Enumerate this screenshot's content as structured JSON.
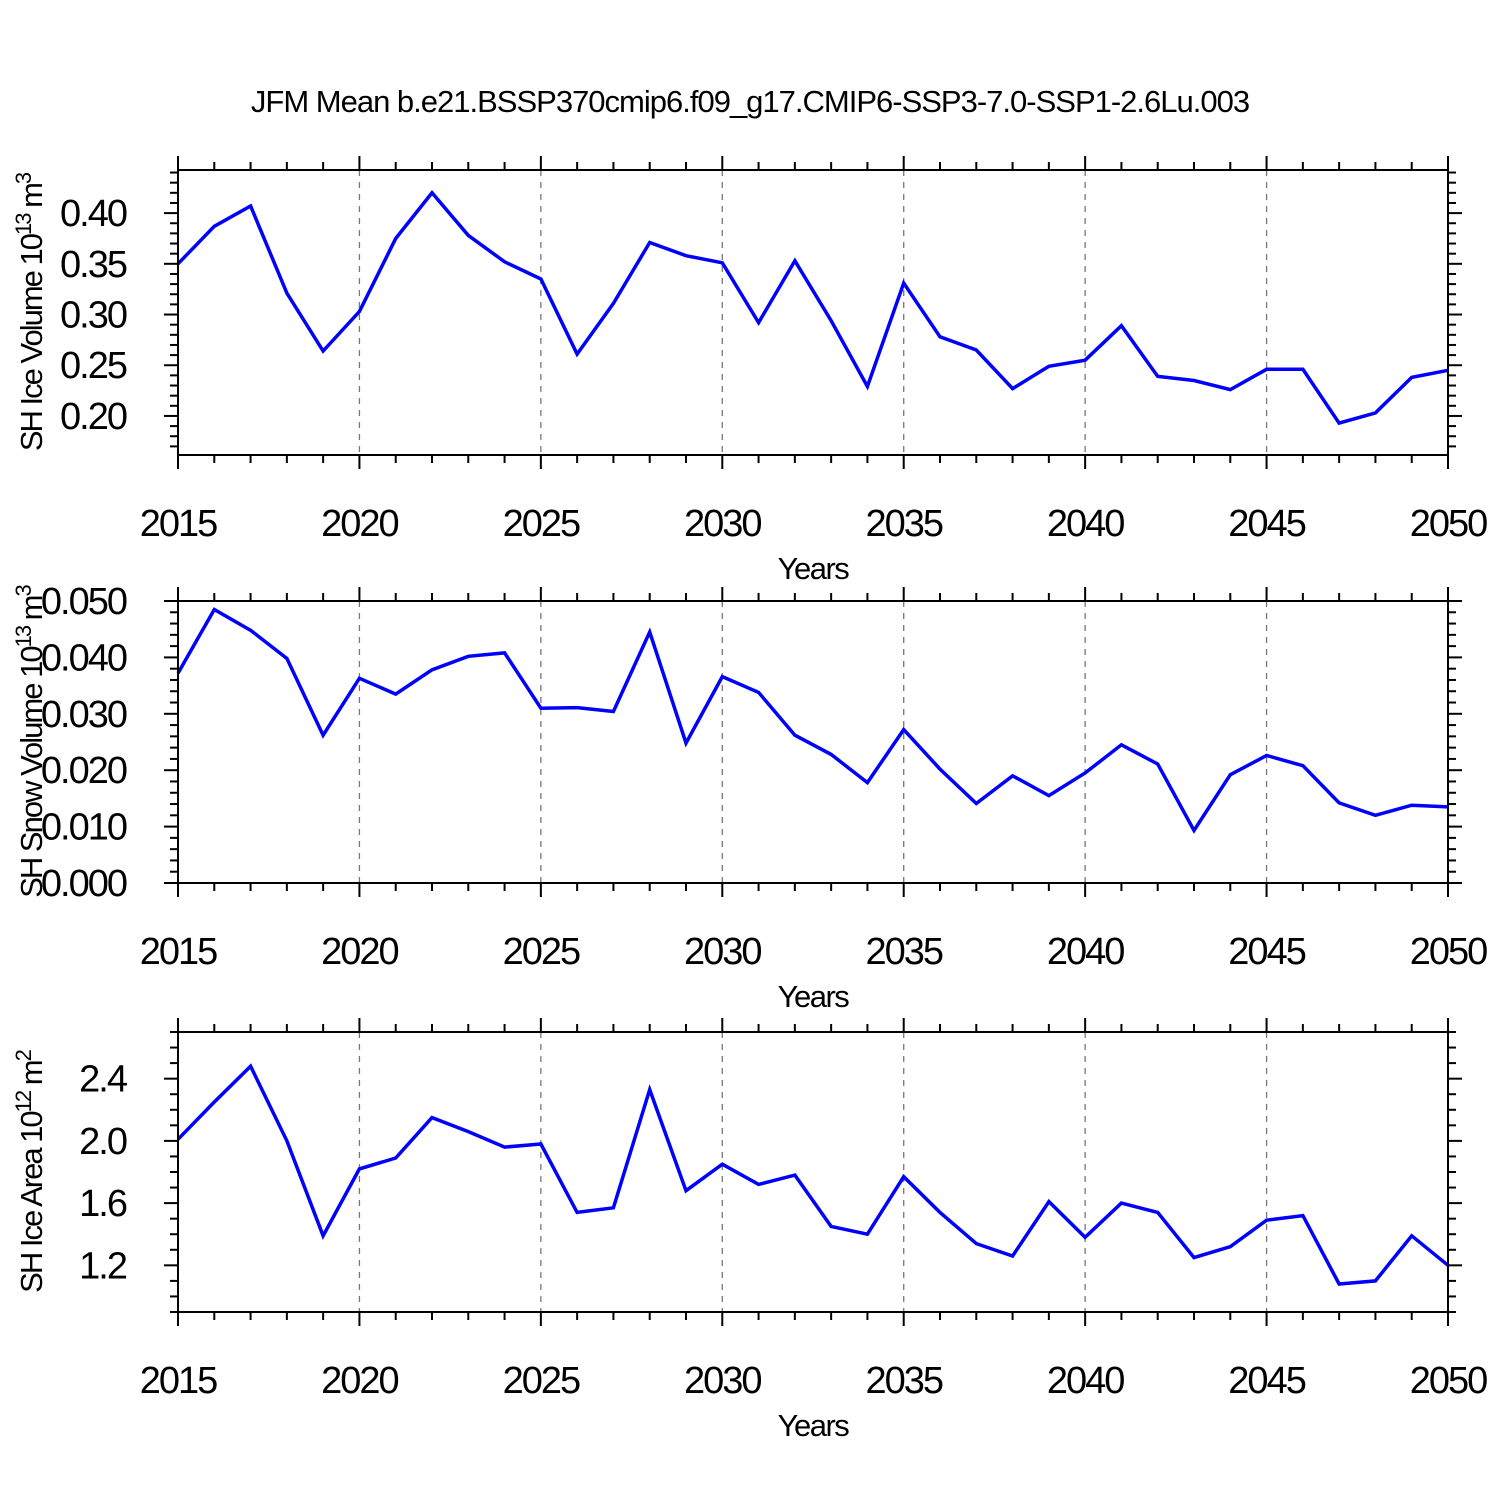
{
  "title": "JFM Mean b.e21.BSSP370cmip6.f09_g17.CMIP6-SSP3-7.0-SSP1-2.6Lu.003",
  "line_color": "#0000ff",
  "grid_color": "#777777",
  "axis_color": "#000000",
  "chart_data": [
    {
      "type": "line",
      "title": "",
      "ylabel": "SH Ice Volume 10^{13} m^{3}",
      "xlabel": "Years",
      "x": [
        2015,
        2016,
        2017,
        2018,
        2019,
        2020,
        2021,
        2022,
        2023,
        2024,
        2025,
        2026,
        2027,
        2028,
        2029,
        2030,
        2031,
        2032,
        2033,
        2034,
        2035,
        2036,
        2037,
        2038,
        2039,
        2040,
        2041,
        2042,
        2043,
        2044,
        2045,
        2046,
        2047,
        2048,
        2049,
        2050
      ],
      "values": [
        0.35,
        0.387,
        0.407,
        0.321,
        0.264,
        0.303,
        0.375,
        0.42,
        0.378,
        0.352,
        0.335,
        0.261,
        0.311,
        0.371,
        0.358,
        0.351,
        0.292,
        0.353,
        0.294,
        0.229,
        0.331,
        0.278,
        0.265,
        0.227,
        0.249,
        0.255,
        0.289,
        0.239,
        0.235,
        0.226,
        0.246,
        0.246,
        0.193,
        0.203,
        0.238,
        0.245
      ],
      "xlim": [
        2015,
        2050
      ],
      "ylim": [
        0.1615,
        0.4425
      ],
      "xticks": [
        2015,
        2020,
        2025,
        2030,
        2035,
        2040,
        2045,
        2050
      ],
      "x_minor_step": 1,
      "ytick_values": [
        0.2,
        0.25,
        0.3,
        0.35,
        0.4
      ],
      "ytick_labels": [
        "0.20",
        "0.25",
        "0.30",
        "0.35",
        "0.40"
      ],
      "y_minor_step": 0.01,
      "grid_x": [
        2020,
        2025,
        2030,
        2035,
        2040,
        2045
      ],
      "grid_on": true,
      "legend": "none"
    },
    {
      "type": "line",
      "title": "",
      "ylabel": "SH Snow Volume 10^{13} m^{3}",
      "xlabel": "Years",
      "x": [
        2015,
        2016,
        2017,
        2018,
        2019,
        2020,
        2021,
        2022,
        2023,
        2024,
        2025,
        2026,
        2027,
        2028,
        2029,
        2030,
        2031,
        2032,
        2033,
        2034,
        2035,
        2036,
        2037,
        2038,
        2039,
        2040,
        2041,
        2042,
        2043,
        2044,
        2045,
        2046,
        2047,
        2048,
        2049,
        2050
      ],
      "values": [
        0.0372,
        0.0485,
        0.0448,
        0.0398,
        0.0262,
        0.0363,
        0.0335,
        0.0378,
        0.0402,
        0.0408,
        0.031,
        0.0311,
        0.0304,
        0.0445,
        0.0248,
        0.0366,
        0.0338,
        0.0262,
        0.0228,
        0.0178,
        0.0272,
        0.0202,
        0.0141,
        0.019,
        0.0155,
        0.0195,
        0.0245,
        0.0211,
        0.0093,
        0.0192,
        0.0226,
        0.0208,
        0.0142,
        0.012,
        0.0138,
        0.0135
      ],
      "xlim": [
        2015,
        2050
      ],
      "ylim": [
        0.0,
        0.05
      ],
      "xticks": [
        2015,
        2020,
        2025,
        2030,
        2035,
        2040,
        2045,
        2050
      ],
      "x_minor_step": 1,
      "ytick_values": [
        0.0,
        0.01,
        0.02,
        0.03,
        0.04,
        0.05
      ],
      "ytick_labels": [
        "0.000",
        "0.010",
        "0.020",
        "0.030",
        "0.040",
        "0.050"
      ],
      "y_minor_step": 0.002,
      "grid_x": [
        2020,
        2025,
        2030,
        2035,
        2040,
        2045
      ],
      "grid_on": true,
      "legend": "none"
    },
    {
      "type": "line",
      "title": "",
      "ylabel": "SH Ice Area 10^{12} m^{2}",
      "xlabel": "Years",
      "x": [
        2015,
        2016,
        2017,
        2018,
        2019,
        2020,
        2021,
        2022,
        2023,
        2024,
        2025,
        2026,
        2027,
        2028,
        2029,
        2030,
        2031,
        2032,
        2033,
        2034,
        2035,
        2036,
        2037,
        2038,
        2039,
        2040,
        2041,
        2042,
        2043,
        2044,
        2045,
        2046,
        2047,
        2048,
        2049,
        2050
      ],
      "values": [
        2.01,
        2.25,
        2.48,
        2.0,
        1.39,
        1.82,
        1.89,
        2.15,
        2.06,
        1.96,
        1.98,
        1.54,
        1.57,
        2.33,
        1.68,
        1.85,
        1.72,
        1.78,
        1.45,
        1.4,
        1.77,
        1.54,
        1.34,
        1.26,
        1.61,
        1.38,
        1.6,
        1.54,
        1.25,
        1.32,
        1.49,
        1.52,
        1.08,
        1.1,
        1.39,
        1.2
      ],
      "xlim": [
        2015,
        2050
      ],
      "ylim": [
        0.9,
        2.7
      ],
      "xticks": [
        2015,
        2020,
        2025,
        2030,
        2035,
        2040,
        2045,
        2050
      ],
      "x_minor_step": 1,
      "ytick_values": [
        1.2,
        1.6,
        2.0,
        2.4
      ],
      "ytick_labels": [
        "1.2",
        "1.6",
        "2.0",
        "2.4"
      ],
      "y_minor_step": 0.1,
      "grid_x": [
        2020,
        2025,
        2030,
        2035,
        2040,
        2045
      ],
      "grid_on": true,
      "legend": "none"
    }
  ]
}
